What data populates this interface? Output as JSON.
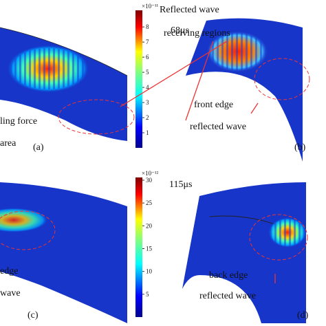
{
  "panels": [
    {
      "label": "(a)",
      "texts": [
        "Reflected wave",
        "receiving regions",
        "ling force",
        "area"
      ],
      "colorbar": {
        "exponent": "×10⁻¹¹",
        "lim": [
          0,
          9.1
        ],
        "ticks": [
          1,
          2,
          3,
          4,
          5,
          6,
          7,
          8
        ]
      }
    },
    {
      "label": "(b)",
      "texts": [
        "68μs",
        "front edge",
        "reflected wave"
      ]
    },
    {
      "label": "(c)",
      "texts": [
        "edge",
        "wave"
      ],
      "colorbar": {
        "exponent": "×10⁻¹²",
        "lim": [
          0,
          30.6
        ],
        "ticks": [
          5,
          10,
          15,
          20,
          25,
          30
        ]
      }
    },
    {
      "label": "(d)",
      "texts": [
        "115μs",
        "back edge",
        "reflected wave"
      ]
    }
  ]
}
